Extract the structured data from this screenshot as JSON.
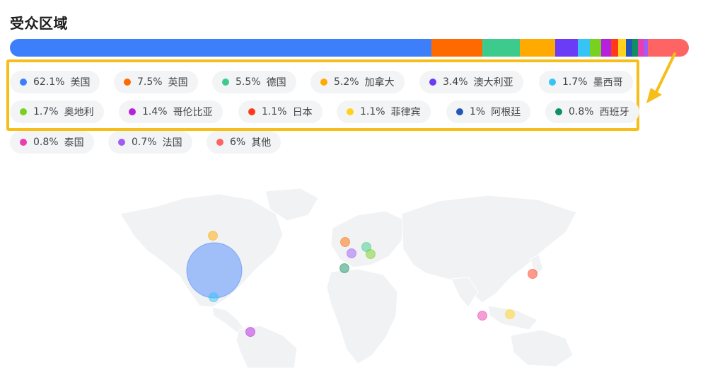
{
  "title": "受众区域",
  "colors": {
    "highlight": "#f5be19",
    "chip_bg": "#f3f4f6",
    "map_land": "#f1f2f4"
  },
  "chart_data": {
    "type": "bar",
    "stacked": true,
    "unit": "%",
    "categories": [
      "美国",
      "英国",
      "德国",
      "加拿大",
      "澳大利亚",
      "墨西哥",
      "奥地利",
      "哥伦比亚",
      "日本",
      "菲律宾",
      "阿根廷",
      "西班牙",
      "泰国",
      "法国",
      "其他"
    ],
    "values": [
      62.1,
      7.5,
      5.5,
      5.2,
      3.4,
      1.7,
      1.7,
      1.4,
      1.1,
      1.1,
      1,
      0.8,
      0.8,
      0.7,
      6
    ],
    "labels": [
      "62.1%",
      "7.5%",
      "5.5%",
      "5.2%",
      "3.4%",
      "1.7%",
      "1.7%",
      "1.4%",
      "1.1%",
      "1.1%",
      "1%",
      "0.8%",
      "0.8%",
      "0.7%",
      "6%"
    ],
    "colors": [
      "#3d7ffb",
      "#ff6a00",
      "#3ccb8d",
      "#ffaa00",
      "#6b3cf5",
      "#36c3f5",
      "#78d021",
      "#b621de",
      "#ff3a1b",
      "#ffd21e",
      "#2356b8",
      "#0f9060",
      "#ea3dae",
      "#a05cf5",
      "#ff6464"
    ]
  },
  "map_bubbles": [
    {
      "country": "美国",
      "color": "#3d7ffb"
    },
    {
      "country": "加拿大",
      "color": "#ffaa00"
    },
    {
      "country": "墨西哥",
      "color": "#36c3f5"
    },
    {
      "country": "哥伦比亚",
      "color": "#b621de"
    },
    {
      "country": "英国",
      "color": "#ff6a00"
    },
    {
      "country": "法国",
      "color": "#a05cf5"
    },
    {
      "country": "德国",
      "color": "#3ccb8d"
    },
    {
      "country": "奥地利",
      "color": "#78d021"
    },
    {
      "country": "西班牙",
      "color": "#0f9060"
    },
    {
      "country": "日本",
      "color": "#ff3a1b"
    },
    {
      "country": "泰国",
      "color": "#ea3dae"
    },
    {
      "country": "菲律宾",
      "color": "#ffd21e"
    }
  ]
}
